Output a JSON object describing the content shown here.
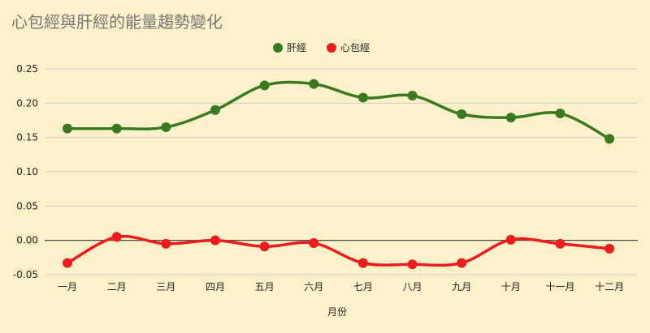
{
  "chart_data": {
    "type": "line",
    "title": "心包經與肝經的能量趨勢變化",
    "xlabel": "月份",
    "ylabel": "",
    "categories": [
      "一月",
      "二月",
      "三月",
      "四月",
      "五月",
      "六月",
      "七月",
      "八月",
      "九月",
      "十月",
      "十一月",
      "十二月"
    ],
    "ylim": [
      -0.05,
      0.25
    ],
    "yticks": [
      "0.25",
      "0.20",
      "0.15",
      "0.10",
      "0.05",
      "0.00",
      "-0.05"
    ],
    "legend_position": "top-center",
    "grid": true,
    "series": [
      {
        "name": "肝經",
        "color": "#3a7a1e",
        "values": [
          0.163,
          0.163,
          0.165,
          0.19,
          0.226,
          0.228,
          0.208,
          0.211,
          0.184,
          0.179,
          0.185,
          0.148
        ]
      },
      {
        "name": "心包經",
        "color": "#ee1c1c",
        "values": [
          -0.033,
          0.005,
          -0.005,
          0.0,
          -0.009,
          -0.004,
          -0.033,
          -0.035,
          -0.033,
          0.001,
          -0.005,
          -0.012
        ]
      }
    ]
  }
}
